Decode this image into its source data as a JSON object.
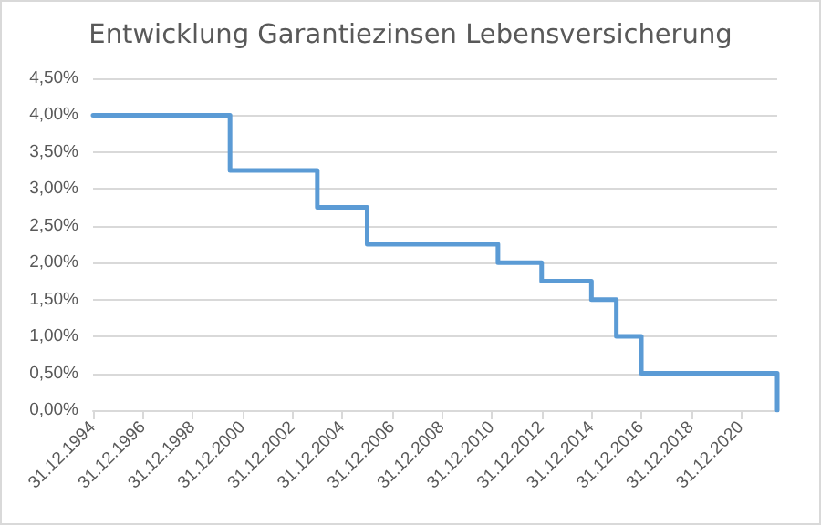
{
  "chart_data": {
    "type": "step",
    "title": "Entwicklung Garantiezinsen Lebensversicherung",
    "x": [
      "1994-12-31",
      "2000-06-30",
      "2003-12-31",
      "2005-12-31",
      "2011-04-01",
      "2012-12-31",
      "2014-12-31",
      "2015-12-31",
      "2016-12-31",
      "2022-06-15"
    ],
    "series": [
      {
        "color": "#5b9bd5",
        "values": [
          4.0,
          3.25,
          2.75,
          2.25,
          2.0,
          1.75,
          1.5,
          1.0,
          0.5,
          0.0
        ]
      }
    ],
    "xlim": [
      "1994-12-31",
      "2022-06-15"
    ],
    "xticks": [
      {
        "value": "1994-12-31",
        "label": "31.12.1994"
      },
      {
        "value": "1996-12-31",
        "label": "31.12.1996"
      },
      {
        "value": "1998-12-31",
        "label": "31.12.1998"
      },
      {
        "value": "2000-12-31",
        "label": "31.12.2000"
      },
      {
        "value": "2002-12-31",
        "label": "31.12.2002"
      },
      {
        "value": "2004-12-31",
        "label": "31.12.2004"
      },
      {
        "value": "2006-12-31",
        "label": "31.12.2006"
      },
      {
        "value": "2008-12-31",
        "label": "31.12.2008"
      },
      {
        "value": "2010-12-31",
        "label": "31.12.2010"
      },
      {
        "value": "2012-12-31",
        "label": "31.12.2012"
      },
      {
        "value": "2014-12-31",
        "label": "31.12.2014"
      },
      {
        "value": "2016-12-31",
        "label": "31.12.2016"
      },
      {
        "value": "2018-12-31",
        "label": "31.12.2018"
      },
      {
        "value": "2020-12-31",
        "label": "31.12.2020"
      }
    ],
    "ylim": [
      0,
      4.5
    ],
    "yticks": [
      {
        "value": 0,
        "label": "0,00%"
      },
      {
        "value": 0.5,
        "label": "0,50%"
      },
      {
        "value": 1,
        "label": "1,00%"
      },
      {
        "value": 1.5,
        "label": "1,50%"
      },
      {
        "value": 2,
        "label": "2,00%"
      },
      {
        "value": 2.5,
        "label": "2,50%"
      },
      {
        "value": 3,
        "label": "3,00%"
      },
      {
        "value": 3.5,
        "label": "3,50%"
      },
      {
        "value": 4,
        "label": "4,00%"
      },
      {
        "value": 4.5,
        "label": "4,50%"
      }
    ],
    "grid": "y",
    "marker": "none",
    "line_style": "solid"
  }
}
